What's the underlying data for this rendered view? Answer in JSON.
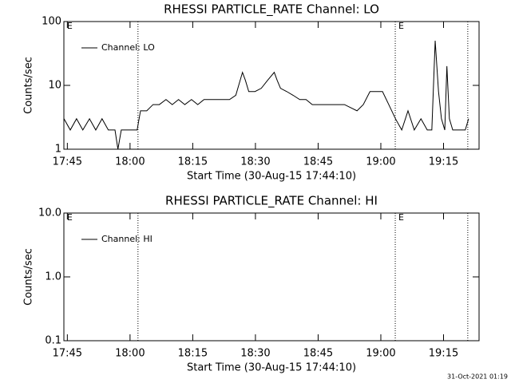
{
  "chart_data": [
    {
      "type": "line",
      "title": "RHESSI PARTICLE_RATE Channel: LO",
      "xlabel": "Start Time (30-Aug-15 17:44:10)",
      "ylabel": "Counts/sec",
      "log_y": true,
      "legend": "upper left",
      "x": [
        1064.2,
        1065.7,
        1067.2,
        1068.7,
        1070.3,
        1071.8,
        1073.3,
        1074.8,
        1076.4,
        1077.1,
        1077.9,
        1079.4,
        1080.9,
        1081.7,
        1082.5,
        1084.0,
        1085.5,
        1087.0,
        1088.6,
        1090.1,
        1091.6,
        1093.1,
        1094.7,
        1096.2,
        1097.7,
        1099.2,
        1100.8,
        1102.3,
        1103.8,
        1105.3,
        1106.9,
        1107.6,
        1108.4,
        1109.9,
        1111.4,
        1112.9,
        1114.5,
        1115.2,
        1116.0,
        1117.5,
        1119.0,
        1120.6,
        1122.1,
        1123.6,
        1125.1,
        1128.2,
        1131.3,
        1134.3,
        1135.8,
        1137.4,
        1138.9,
        1140.4,
        1141.9,
        1143.5,
        1145.0,
        1146.5,
        1148.0,
        1149.6,
        1151.1,
        1152.2,
        1153.0,
        1153.8,
        1154.5,
        1155.3,
        1155.8,
        1156.4,
        1157.2,
        1158.7,
        1160.2,
        1161.0
      ],
      "series": [
        {
          "name": "Channel: LO",
          "color": "#000000",
          "values": [
            3,
            2,
            3,
            2,
            3,
            2,
            3,
            2,
            2,
            1,
            2,
            2,
            2,
            2,
            4,
            4,
            5,
            5,
            6,
            5,
            6,
            5,
            6,
            5,
            6,
            6,
            6,
            6,
            6,
            7,
            16,
            12,
            8,
            8,
            9,
            12,
            16,
            12,
            9,
            8,
            7,
            6,
            6,
            5,
            5,
            5,
            5,
            4,
            5,
            8,
            8,
            8,
            5,
            3,
            2,
            4,
            2,
            3,
            2,
            2,
            50,
            8,
            3,
            2,
            20,
            3,
            2,
            2,
            2,
            3
          ]
        }
      ],
      "xlim": [
        1064.17,
        1163.5
      ],
      "xticks": [
        {
          "value": 1065,
          "label": "17:45"
        },
        {
          "value": 1080,
          "label": "18:00"
        },
        {
          "value": 1095,
          "label": "18:15"
        },
        {
          "value": 1110,
          "label": "18:30"
        },
        {
          "value": 1125,
          "label": "18:45"
        },
        {
          "value": 1140,
          "label": "19:00"
        },
        {
          "value": 1155,
          "label": "19:15"
        }
      ],
      "ylim": [
        1,
        100
      ],
      "yticks": [
        1,
        10,
        100
      ],
      "vlines": [
        1081.9,
        1143.45,
        1160.8
      ],
      "annotations": [
        {
          "text": "E",
          "x": 1064.9
        },
        {
          "text": "E",
          "x": 1144.2
        }
      ]
    },
    {
      "type": "line",
      "title": "RHESSI PARTICLE_RATE Channel: HI",
      "xlabel": "Start Time (30-Aug-15 17:44:10)",
      "ylabel": "Counts/sec",
      "log_y": true,
      "legend": "upper left",
      "x": [],
      "series": [
        {
          "name": "Channel: HI",
          "color": "#000000",
          "values": []
        }
      ],
      "xlim": [
        1064.17,
        1163.5
      ],
      "xticks": [
        {
          "value": 1065,
          "label": "17:45"
        },
        {
          "value": 1080,
          "label": "18:00"
        },
        {
          "value": 1095,
          "label": "18:15"
        },
        {
          "value": 1110,
          "label": "18:30"
        },
        {
          "value": 1125,
          "label": "18:45"
        },
        {
          "value": 1140,
          "label": "19:00"
        },
        {
          "value": 1155,
          "label": "19:15"
        }
      ],
      "ylim": [
        0.1,
        10
      ],
      "yticks": [
        0.1,
        {
          "value": 1,
          "label": "1.0"
        },
        {
          "value": 10,
          "label": "10.0"
        }
      ],
      "vlines": [
        1081.9,
        1143.45,
        1160.8
      ],
      "annotations": [
        {
          "text": "E",
          "x": 1064.9
        },
        {
          "text": "E",
          "x": 1144.2
        }
      ]
    }
  ],
  "footer": "31-Oct-2021 01:19"
}
